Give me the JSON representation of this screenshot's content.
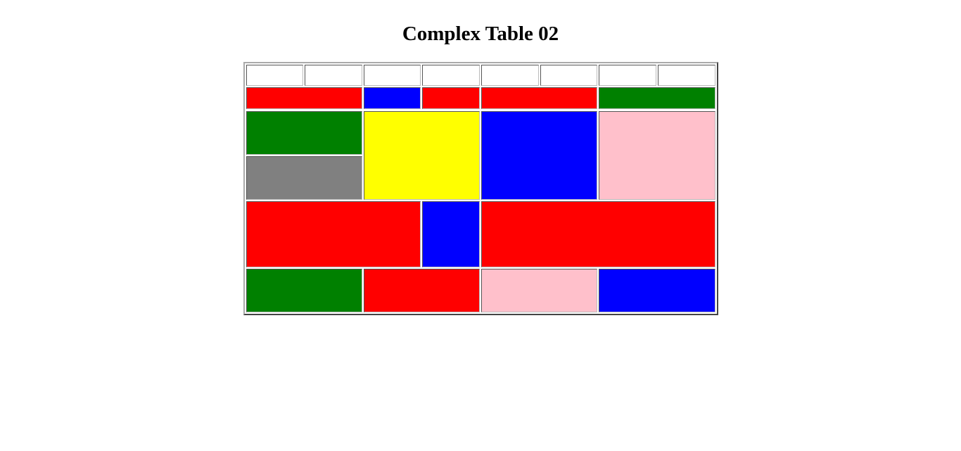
{
  "page": {
    "title": "Complex Table 02"
  },
  "colors": {
    "white": "#ffffff",
    "red": "#ff0000",
    "blue": "#0000ff",
    "green": "#008000",
    "yellow": "#ffff00",
    "gray": "#808080",
    "pink": "#ffc0cb"
  },
  "table": {
    "rows": [
      {
        "cells": [
          {
            "color": "white",
            "colspan": 1
          },
          {
            "color": "white",
            "colspan": 1
          },
          {
            "color": "white",
            "colspan": 1
          },
          {
            "color": "white",
            "colspan": 1
          },
          {
            "color": "white",
            "colspan": 1
          },
          {
            "color": "white",
            "colspan": 1
          },
          {
            "color": "white",
            "colspan": 1
          },
          {
            "color": "white",
            "colspan": 1
          }
        ]
      },
      {
        "cells": [
          {
            "color": "red",
            "colspan": 2
          },
          {
            "color": "blue",
            "colspan": 1
          },
          {
            "color": "red",
            "colspan": 1
          },
          {
            "color": "red",
            "colspan": 2
          },
          {
            "color": "green",
            "colspan": 2
          }
        ]
      },
      {
        "cells": [
          {
            "color": "green",
            "colspan": 2,
            "rowspan": 1
          },
          {
            "color": "yellow",
            "colspan": 2,
            "rowspan": 2
          },
          {
            "color": "blue",
            "colspan": 2,
            "rowspan": 2
          },
          {
            "color": "pink",
            "colspan": 2,
            "rowspan": 2
          }
        ]
      },
      {
        "cells": [
          {
            "color": "gray",
            "colspan": 2
          }
        ]
      },
      {
        "cells": [
          {
            "color": "red",
            "colspan": 3
          },
          {
            "color": "blue",
            "colspan": 1
          },
          {
            "color": "red",
            "colspan": 4
          }
        ]
      },
      {
        "cells": [
          {
            "color": "green",
            "colspan": 2
          },
          {
            "color": "red",
            "colspan": 2
          },
          {
            "color": "pink",
            "colspan": 2
          },
          {
            "color": "blue",
            "colspan": 2
          }
        ]
      }
    ]
  }
}
